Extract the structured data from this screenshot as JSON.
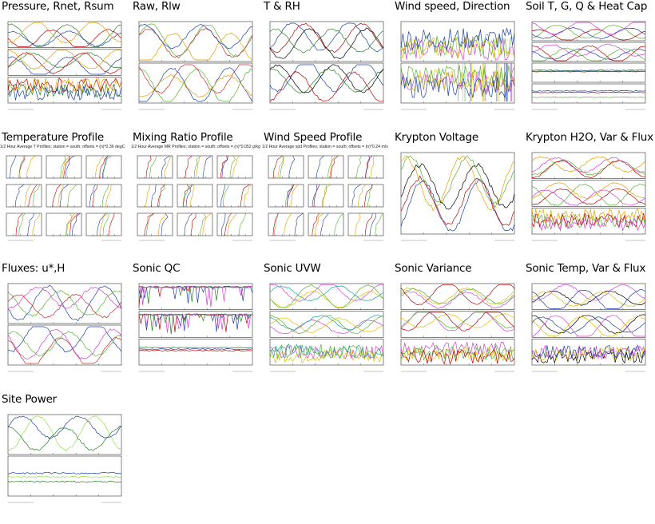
{
  "panels": [
    {
      "title": "Pressure, Rnet, Rsum",
      "kind": "triple",
      "colors": [
        "#2a7d2a",
        "#c00000",
        "#1c3fa8",
        "#e0a000"
      ]
    },
    {
      "title": "Raw, Rlw",
      "kind": "double",
      "colors": [
        "#58b030",
        "#c03030",
        "#1c3fa8",
        "#e0a000"
      ]
    },
    {
      "title": "T & RH",
      "kind": "double",
      "colors": [
        "#1c3fa8",
        "#c00000",
        "#2a7d2a",
        "#000000"
      ]
    },
    {
      "title": "Wind speed, Direction",
      "kind": "wind",
      "colors": [
        "#d040d0",
        "#e0c000",
        "#58b030",
        "#1c3fa8"
      ]
    },
    {
      "title": "Soil T, G, Q & Heat Cap",
      "kind": "quad",
      "colors": [
        "#1c3fa8",
        "#58b030",
        "#c00000",
        "#d040d0"
      ]
    },
    {
      "title": "Temperature Profile",
      "kind": "grid",
      "subtitle": "1/2 Hour Average T Profiles; station = south; offsets = (n)*0.36 degC",
      "colors": [
        "#c00000",
        "#58b030",
        "#1c3fa8",
        "#e0a000"
      ]
    },
    {
      "title": "Mixing Ratio Profile",
      "kind": "grid",
      "subtitle": "1/2 Hour Average MR Profiles; station = south; offsets = (n)*0.052 g/kg",
      "colors": [
        "#c00000",
        "#58b030",
        "#1c3fa8",
        "#e0a000"
      ]
    },
    {
      "title": "Wind Speed Profile",
      "kind": "grid",
      "subtitle": "1/2 Hour Average spd Profiles; station = south; offsets = (n)*0.24 m/s",
      "colors": [
        "#c00000",
        "#58b030",
        "#1c3fa8",
        "#e0a000"
      ]
    },
    {
      "title": "Krypton Voltage",
      "kind": "single",
      "colors": [
        "#1c3fa8",
        "#e0a000",
        "#58b030",
        "#c00000",
        "#000000"
      ]
    },
    {
      "title": "Krypton H2O, Var & Flux",
      "kind": "triple",
      "colors": [
        "#58b030",
        "#c00000",
        "#e0a000",
        "#d040d0"
      ]
    },
    {
      "title": "Fluxes: u*,H",
      "kind": "double",
      "colors": [
        "#1c3fa8",
        "#58b030",
        "#c03030",
        "#d040d0"
      ]
    },
    {
      "title": "Sonic QC",
      "kind": "qc",
      "colors": [
        "#c00000",
        "#1c3fa8",
        "#2a7d2a",
        "#d040d0"
      ]
    },
    {
      "title": "Sonic UVW",
      "kind": "triple",
      "colors": [
        "#d040d0",
        "#e0c000",
        "#20a0a0",
        "#58b030"
      ]
    },
    {
      "title": "Sonic Variance",
      "kind": "triple",
      "colors": [
        "#d040d0",
        "#e0c000",
        "#58b030",
        "#c00000"
      ]
    },
    {
      "title": "Sonic Temp, Var & Flux",
      "kind": "triple",
      "colors": [
        "#000000",
        "#d040d0",
        "#e0c000",
        "#1c3fa8"
      ]
    },
    {
      "title": "Site Power",
      "kind": "power",
      "colors": [
        "#90e040",
        "#2a7d2a",
        "#1c3fa8"
      ]
    }
  ]
}
